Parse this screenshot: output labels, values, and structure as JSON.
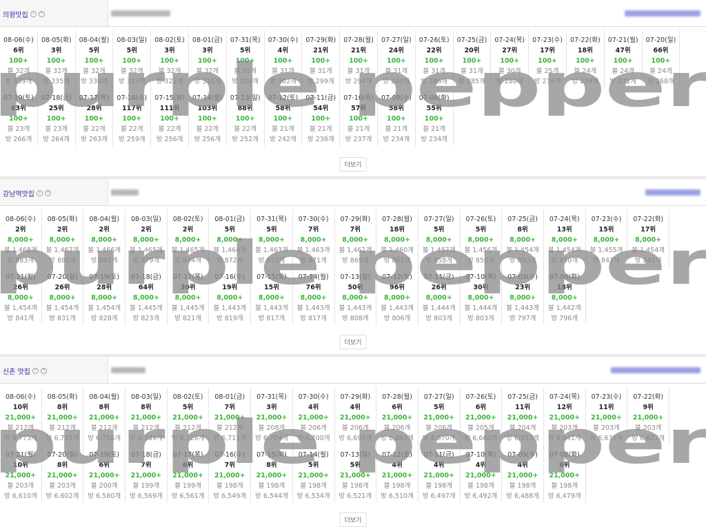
{
  "more_label": "더보기",
  "watermark_text": "purple pepper",
  "colors": {
    "title_blue": "#2b2f9a",
    "green": "#3ab53a",
    "watermark": "#8a8a8a"
  },
  "sections": [
    {
      "title": "의왕맛집",
      "rows": [
        [
          [
            "08-06(수)",
            "6위",
            "100+",
            "블 32개",
            "방 339개"
          ],
          [
            "08-05(화)",
            "3위",
            "100+",
            "블 32개",
            "방 335개"
          ],
          [
            "08-04(월)",
            "5위",
            "100+",
            "블 32개",
            "방 330개"
          ],
          [
            "08-03(일)",
            "5위",
            "100+",
            "블 32개",
            "방 323개"
          ],
          [
            "08-02(토)",
            "3위",
            "100+",
            "블 32개",
            "방 321개"
          ],
          [
            "08-01(금)",
            "3위",
            "100+",
            "블 32개",
            "방 316개"
          ],
          [
            "07-31(목)",
            "5위",
            "100+",
            "블 31개",
            "방 309개"
          ],
          [
            "07-30(수)",
            "4위",
            "100+",
            "블 31개",
            "방 302개"
          ],
          [
            "07-29(화)",
            "21위",
            "100+",
            "블 31개",
            "방 299개"
          ],
          [
            "07-28(월)",
            "21위",
            "100+",
            "블 31개",
            "방 294개"
          ],
          [
            "07-27(일)",
            "24위",
            "100+",
            "블 31개",
            "방 287개"
          ],
          [
            "07-26(토)",
            "22위",
            "100+",
            "블 31개",
            "방 286개"
          ],
          [
            "07-25(금)",
            "20위",
            "100+",
            "블 31개",
            "방 285개"
          ],
          [
            "07-24(목)",
            "27위",
            "100+",
            "블 30개",
            "방 280개"
          ],
          [
            "07-23(수)",
            "17위",
            "100+",
            "블 25개",
            "방 276개"
          ],
          [
            "07-22(화)",
            "18위",
            "100+",
            "블 24개",
            "방 274개"
          ],
          [
            "07-21(월)",
            "47위",
            "100+",
            "블 24개",
            "방 271개"
          ],
          [
            "07-20(일)",
            "66위",
            "100+",
            "블 24개",
            "방 268개"
          ]
        ],
        [
          [
            "07-19(토)",
            "83위",
            "100+",
            "블 23개",
            "방 266개"
          ],
          [
            "07-18(금)",
            "25위",
            "100+",
            "블 23개",
            "방 264개"
          ],
          [
            "07-17(목)",
            "28위",
            "100+",
            "블 22개",
            "방 263개"
          ],
          [
            "07-16(수)",
            "117위",
            "100+",
            "블 22개",
            "방 259개"
          ],
          [
            "07-15(화)",
            "111위",
            "100+",
            "블 22개",
            "방 256개"
          ],
          [
            "07-14(월)",
            "103위",
            "100+",
            "블 22개",
            "방 256개"
          ],
          [
            "07-13(일)",
            "88위",
            "100+",
            "블 22개",
            "방 252개"
          ],
          [
            "07-12(토)",
            "58위",
            "100+",
            "블 21개",
            "방 242개"
          ],
          [
            "07-11(금)",
            "54위",
            "100+",
            "블 21개",
            "방 238개"
          ],
          [
            "07-10(목)",
            "57위",
            "100+",
            "블 21개",
            "방 237개"
          ],
          [
            "07-09(수)",
            "58위",
            "100+",
            "블 21개",
            "방 234개"
          ],
          [
            "07-08(화)",
            "55위",
            "100+",
            "블 21개",
            "방 234개"
          ]
        ]
      ]
    },
    {
      "title": "강남역맛집",
      "rows": [
        [
          [
            "08-06(수)",
            "2위",
            "8,000+",
            "블 1,468개",
            "방 883개"
          ],
          [
            "08-05(화)",
            "2위",
            "8,000+",
            "블 1,467개",
            "방 881개"
          ],
          [
            "08-04(월)",
            "2위",
            "8,000+",
            "블 1,466개",
            "방 881개"
          ],
          [
            "08-03(일)",
            "2위",
            "8,000+",
            "블 1,465개",
            "방 879개"
          ],
          [
            "08-02(토)",
            "2위",
            "8,000+",
            "블 1,465개",
            "방 874개"
          ],
          [
            "08-01(금)",
            "5위",
            "8,000+",
            "블 1,464개",
            "방 872개"
          ],
          [
            "07-31(목)",
            "5위",
            "8,000+",
            "블 1,463개",
            "방 873개"
          ],
          [
            "07-30(수)",
            "7위",
            "8,000+",
            "블 1,463개",
            "방 871개"
          ],
          [
            "07-29(화)",
            "7위",
            "8,000+",
            "블 1,462개",
            "방 869개"
          ],
          [
            "07-28(월)",
            "18위",
            "8,000+",
            "블 1,460개",
            "방 861개"
          ],
          [
            "07-27(일)",
            "5위",
            "8,000+",
            "블 1,457개",
            "방 858개"
          ],
          [
            "07-26(토)",
            "5위",
            "8,000+",
            "블 1,456개",
            "방 856개"
          ],
          [
            "07-25(금)",
            "8위",
            "8,000+",
            "블 1,454개",
            "방 850개"
          ],
          [
            "07-24(목)",
            "13위",
            "8,000+",
            "블 1,454개",
            "방 850개"
          ],
          [
            "07-23(수)",
            "15위",
            "8,000+",
            "블 1,455개",
            "방 847개"
          ],
          [
            "07-22(화)",
            "17위",
            "8,000+",
            "블 1,454개",
            "방 841개"
          ]
        ],
        [
          [
            "07-21(월)",
            "26위",
            "8,000+",
            "블 1,454개",
            "방 841개"
          ],
          [
            "07-20(일)",
            "26위",
            "8,000+",
            "블 1,454개",
            "방 831개"
          ],
          [
            "07-19(토)",
            "28위",
            "8,000+",
            "블 1,454개",
            "방 828개"
          ],
          [
            "07-18(금)",
            "64위",
            "8,000+",
            "블 1,445개",
            "방 823개"
          ],
          [
            "07-17(목)",
            "30위",
            "8,000+",
            "블 1,445개",
            "방 821개"
          ],
          [
            "07-16(수)",
            "19위",
            "8,000+",
            "블 1,443개",
            "방 819개"
          ],
          [
            "07-15(화)",
            "15위",
            "8,000+",
            "블 1,443개",
            "방 817개"
          ],
          [
            "07-14(월)",
            "76위",
            "8,000+",
            "블 1,443개",
            "방 817개"
          ],
          [
            "07-13(일)",
            "50위",
            "8,000+",
            "블 1,443개",
            "방 808개"
          ],
          [
            "07-12(토)",
            "96위",
            "8,000+",
            "블 1,443개",
            "방 806개"
          ],
          [
            "07-11(금)",
            "26위",
            "8,000+",
            "블 1,444개",
            "방 803개"
          ],
          [
            "07-10(목)",
            "30위",
            "8,000+",
            "블 1,444개",
            "방 803개"
          ],
          [
            "07-09(수)",
            "23위",
            "8,000+",
            "블 1,443개",
            "방 797개"
          ],
          [
            "07-08(화)",
            "18위",
            "8,000+",
            "블 1,442개",
            "방 796개"
          ]
        ]
      ]
    },
    {
      "title": "신촌 맛집",
      "rows": [
        [
          [
            "08-06(수)",
            "10위",
            "21,000+",
            "블 212개",
            "방 6,773개"
          ],
          [
            "08-05(화)",
            "8위",
            "21,000+",
            "블 212개",
            "방 6,765개"
          ],
          [
            "08-04(월)",
            "8위",
            "21,000+",
            "블 212개",
            "방 6,756개"
          ],
          [
            "08-03(일)",
            "8위",
            "21,000+",
            "블 212개",
            "방 6,739개"
          ],
          [
            "08-02(토)",
            "5위",
            "21,000+",
            "블 212개",
            "방 6,726개"
          ],
          [
            "08-01(금)",
            "7위",
            "21,000+",
            "블 212개",
            "방 6,711개"
          ],
          [
            "07-31(목)",
            "3위",
            "21,000+",
            "블 208개",
            "방 6,704개"
          ],
          [
            "07-30(수)",
            "4위",
            "21,000+",
            "블 206개",
            "방 6,700개"
          ],
          [
            "07-29(화)",
            "4위",
            "21,000+",
            "블 206개",
            "방 6,693개"
          ],
          [
            "07-28(월)",
            "6위",
            "21,000+",
            "블 206개",
            "방 6,683개"
          ],
          [
            "07-27(일)",
            "5위",
            "21,000+",
            "블 206개",
            "방 6,670개"
          ],
          [
            "07-26(토)",
            "6위",
            "21,000+",
            "블 205개",
            "방 6,660개"
          ],
          [
            "07-25(금)",
            "11위",
            "21,000+",
            "블 204개",
            "방 6,653개"
          ],
          [
            "07-24(목)",
            "12위",
            "21,000+",
            "블 203개",
            "방 6,641개"
          ],
          [
            "07-23(수)",
            "11위",
            "21,000+",
            "블 203개",
            "방 6,631개"
          ],
          [
            "07-22(화)",
            "9위",
            "21,000+",
            "블 203개",
            "방 6,622개"
          ]
        ],
        [
          [
            "07-21(월)",
            "10위",
            "21,000+",
            "블 203개",
            "방 6,610개"
          ],
          [
            "07-20(일)",
            "8위",
            "21,000+",
            "블 203개",
            "방 6,602개"
          ],
          [
            "07-19(토)",
            "6위",
            "21,000+",
            "블 200개",
            "방 6,580개"
          ],
          [
            "07-18(금)",
            "7위",
            "21,000+",
            "블 199개",
            "방 6,569개"
          ],
          [
            "07-17(목)",
            "6위",
            "21,000+",
            "블 199개",
            "방 6,561개"
          ],
          [
            "07-16(수)",
            "7위",
            "21,000+",
            "블 198개",
            "방 6,549개"
          ],
          [
            "07-15(화)",
            "8위",
            "21,000+",
            "블 198개",
            "방 6,544개"
          ],
          [
            "07-14(월)",
            "5위",
            "21,000+",
            "블 198개",
            "방 6,534개"
          ],
          [
            "07-13(일)",
            "5위",
            "21,000+",
            "블 198개",
            "방 6,521개"
          ],
          [
            "07-12(토)",
            "4위",
            "21,000+",
            "블 198개",
            "방 6,510개"
          ],
          [
            "07-11(금)",
            "4위",
            "21,000+",
            "블 198개",
            "방 6,497개"
          ],
          [
            "07-10(목)",
            "4위",
            "21,000+",
            "블 198개",
            "방 6,492개"
          ],
          [
            "07-09(수)",
            "4위",
            "21,000+",
            "블 198개",
            "방 6,488개"
          ],
          [
            "07-08(화)",
            "6위",
            "21,000+",
            "블 198개",
            "방 6,479개"
          ]
        ]
      ]
    }
  ]
}
